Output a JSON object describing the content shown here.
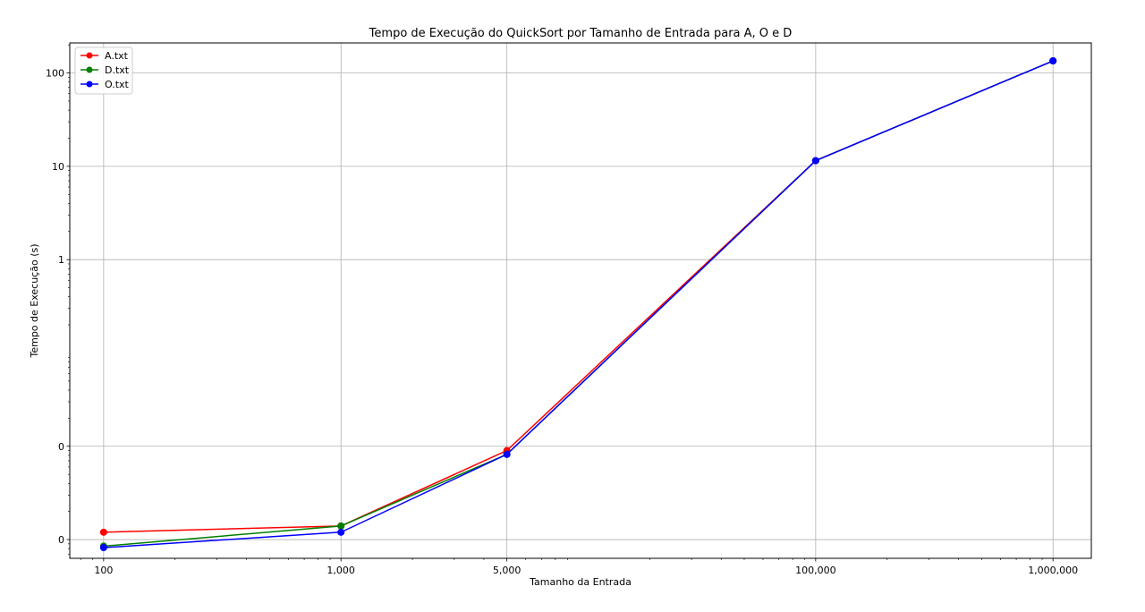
{
  "chart_data": {
    "type": "line",
    "title": "Tempo de Execução do QuickSort por Tamanho de Entrada para A, O e D",
    "xlabel": "Tamanho da Entrada",
    "ylabel": "Tempo de Execução (s)",
    "x_scale": "log",
    "y_scale": "log",
    "x": [
      100,
      1000,
      5000,
      100000,
      1000000
    ],
    "x_tick_labels": [
      "100",
      "1,000",
      "5,000",
      "100,000",
      "1,000,000"
    ],
    "y_ticks": [
      0.001,
      0.01,
      1,
      10,
      100
    ],
    "y_tick_labels": [
      "0",
      "0",
      "1",
      "10",
      "100"
    ],
    "xlim": [
      72,
      1450000
    ],
    "ylim": [
      0.00063,
      210
    ],
    "grid": true,
    "legend_position": "top-left",
    "series": [
      {
        "name": "A.txt",
        "color": "#ff0000",
        "values": [
          0.0012,
          0.0014,
          0.009,
          11.5,
          135
        ]
      },
      {
        "name": "D.txt",
        "color": "#008000",
        "values": [
          0.00085,
          0.0014,
          0.0082,
          11.5,
          135
        ]
      },
      {
        "name": "O.txt",
        "color": "#0000ff",
        "values": [
          0.00082,
          0.0012,
          0.0082,
          11.5,
          135
        ]
      }
    ]
  }
}
